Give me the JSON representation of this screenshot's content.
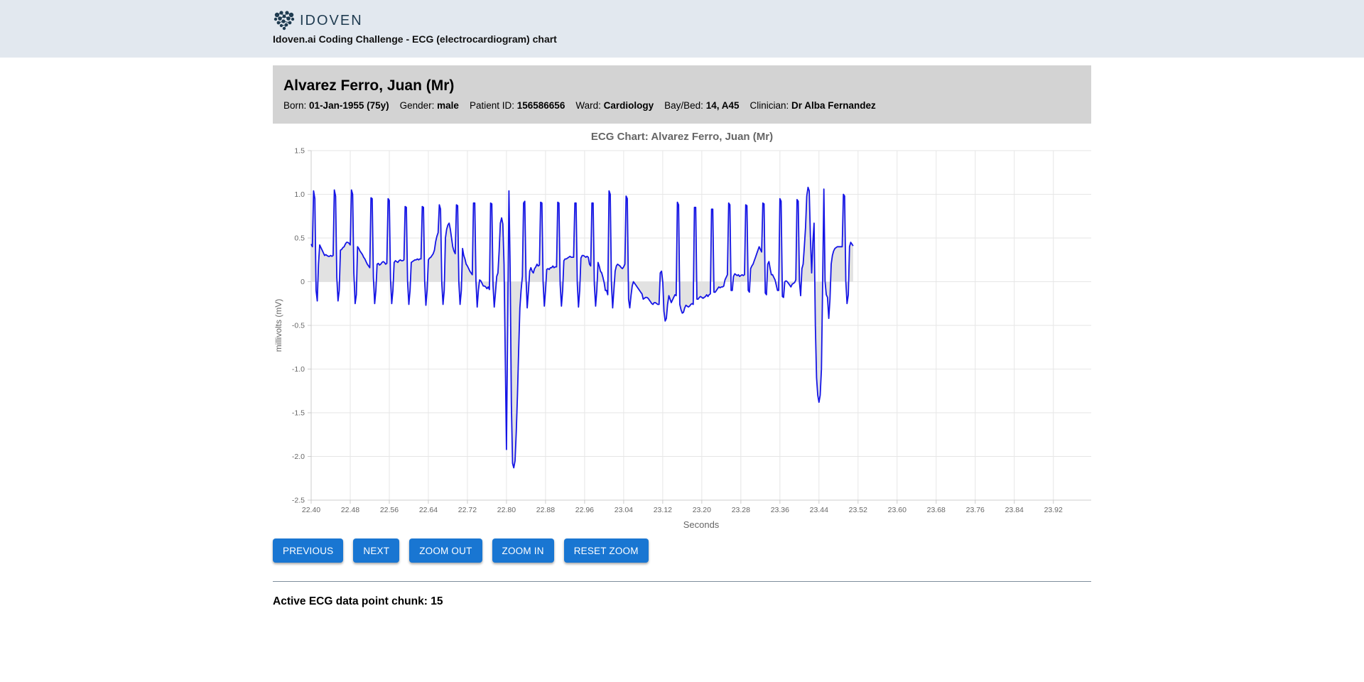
{
  "header": {
    "brand": "IDOVEN",
    "subtitle": "Idoven.ai Coding Challenge - ECG (electrocardiogram) chart",
    "logo_icon": "heart-network-icon"
  },
  "patient": {
    "name": "Alvarez Ferro, Juan (Mr)",
    "fields": [
      {
        "label": "Born:",
        "value": "01-Jan-1955 (75y)"
      },
      {
        "label": "Gender:",
        "value": "male"
      },
      {
        "label": "Patient ID:",
        "value": "156586656"
      },
      {
        "label": "Ward:",
        "value": "Cardiology"
      },
      {
        "label": "Bay/Bed:",
        "value": "14, A45"
      },
      {
        "label": "Clinician:",
        "value": "Dr Alba Fernandez"
      }
    ]
  },
  "controls": {
    "previous": "PREVIOUS",
    "next": "NEXT",
    "zoom_out": "ZOOM OUT",
    "zoom_in": "ZOOM IN",
    "reset_zoom": "RESET ZOOM"
  },
  "status": {
    "label": "Active ECG data point chunk:",
    "value": "15"
  },
  "colors": {
    "line": "#1515e6",
    "fill": "#e2e2e2",
    "button": "#1976d2",
    "header_bg": "#e2e8ef",
    "patient_bg": "#d3d3d3"
  },
  "chart_data": {
    "type": "area",
    "title": "ECG Chart: Alvarez Ferro, Juan (Mr)",
    "xlabel": "Seconds",
    "ylabel": "millivolts (mV)",
    "xlim": [
      22.4,
      23.9975
    ],
    "ylim": [
      -2.5,
      1.5
    ],
    "x_ticks": [
      "22.40",
      "22.48",
      "22.56",
      "22.64",
      "22.72",
      "22.80",
      "22.88",
      "22.96",
      "23.04",
      "23.12",
      "23.20",
      "23.28",
      "23.36",
      "23.44",
      "23.52",
      "23.60",
      "23.68",
      "23.76",
      "23.84",
      "23.92"
    ],
    "y_ticks": [
      "1.5",
      "1.0",
      "0.5",
      "0",
      "-0.5",
      "-1.0",
      "-1.5",
      "-2.0",
      "-2.5"
    ],
    "grid": true,
    "series": [
      {
        "sample_interval": 0.0025,
        "x_start": 22.4,
        "values": [
          0.43,
          0.4,
          1.04,
          0.95,
          -0.1,
          -0.22,
          0.2,
          0.42,
          0.39,
          0.36,
          0.33,
          0.3,
          0.31,
          0.3,
          0.29,
          0.29,
          0.3,
          0.29,
          0.3,
          1.05,
          0.98,
          0.05,
          -0.22,
          -0.1,
          0.36,
          0.37,
          0.39,
          0.4,
          0.43,
          0.45,
          0.45,
          0.44,
          0.42,
          1.05,
          1.0,
          0.1,
          -0.25,
          -0.15,
          0.4,
          0.38,
          0.35,
          0.33,
          0.31,
          0.28,
          0.26,
          0.23,
          0.2,
          0.18,
          0.16,
          0.96,
          0.95,
          0.05,
          -0.25,
          -0.1,
          0.2,
          0.21,
          0.19,
          0.2,
          0.22,
          0.23,
          0.22,
          0.2,
          0.21,
          0.95,
          0.93,
          0.03,
          -0.25,
          -0.1,
          0.22,
          0.24,
          0.23,
          0.22,
          0.24,
          0.25,
          0.24,
          0.24,
          0.25,
          0.86,
          0.85,
          0.0,
          -0.26,
          -0.1,
          0.22,
          0.23,
          0.24,
          0.25,
          0.25,
          0.26,
          0.25,
          0.26,
          0.26,
          0.86,
          0.85,
          0.0,
          -0.27,
          -0.1,
          0.25,
          0.27,
          0.28,
          0.3,
          0.32,
          0.36,
          0.46,
          0.52,
          0.56,
          0.88,
          0.83,
          -0.02,
          -0.26,
          -0.1,
          0.5,
          0.6,
          0.65,
          0.67,
          0.6,
          0.5,
          0.4,
          0.35,
          0.32,
          0.88,
          0.87,
          -0.01,
          -0.26,
          -0.1,
          0.38,
          0.3,
          0.26,
          0.2,
          0.18,
          0.15,
          0.12,
          0.1,
          0.08,
          0.9,
          0.9,
          0.0,
          -0.29,
          -0.1,
          0.02,
          0.01,
          -0.02,
          -0.05,
          -0.05,
          -0.06,
          -0.08,
          -0.06,
          -0.09,
          0.9,
          0.89,
          -0.04,
          -0.29,
          -0.12,
          0.06,
          0.1,
          0.35,
          0.67,
          0.73,
          0.66,
          0.2,
          -0.85,
          -1.92,
          -0.5,
          1.04,
          0.15,
          -1.4,
          -2.08,
          -2.13,
          -2.05,
          -1.72,
          -1.3,
          -0.78,
          -0.3,
          -0.1,
          0.06,
          0.9,
          0.92,
          0.05,
          -0.3,
          -0.1,
          0.12,
          0.16,
          0.12,
          0.1,
          0.15,
          0.17,
          0.2,
          0.18,
          0.19,
          0.91,
          0.9,
          -0.01,
          -0.28,
          -0.1,
          0.14,
          0.15,
          0.14,
          0.16,
          0.16,
          0.18,
          0.16,
          0.17,
          0.17,
          0.91,
          0.9,
          -0.03,
          -0.28,
          -0.1,
          0.24,
          0.26,
          0.26,
          0.27,
          0.28,
          0.29,
          0.28,
          0.28,
          0.28,
          0.9,
          0.9,
          -0.02,
          -0.29,
          -0.1,
          0.27,
          0.3,
          0.3,
          0.29,
          0.28,
          0.29,
          0.28,
          0.2,
          0.18,
          0.9,
          0.9,
          -0.03,
          -0.28,
          -0.1,
          0.22,
          0.18,
          0.12,
          0.1,
          0.05,
          -0.01,
          -0.1,
          -0.1,
          -0.15,
          1.04,
          1.0,
          -0.03,
          -0.3,
          -0.1,
          0.12,
          0.18,
          0.2,
          0.19,
          0.18,
          0.16,
          0.15,
          0.17,
          0.2,
          0.98,
          0.95,
          -0.2,
          -0.3,
          -0.16,
          -0.05,
          0.0,
          -0.02,
          -0.04,
          -0.06,
          -0.08,
          -0.1,
          -0.12,
          -0.14,
          -0.2,
          -0.19,
          -0.18,
          -0.18,
          -0.19,
          -0.21,
          -0.23,
          -0.25,
          -0.26,
          -0.24,
          -0.24,
          -0.25,
          -0.26,
          -0.26,
          0.1,
          0.12,
          0.0,
          -0.34,
          -0.45,
          -0.42,
          -0.26,
          -0.16,
          -0.2,
          -0.24,
          -0.21,
          -0.18,
          -0.15,
          -0.16,
          0.91,
          0.88,
          -0.26,
          -0.32,
          -0.36,
          -0.35,
          -0.3,
          -0.27,
          -0.28,
          -0.29,
          -0.28,
          -0.26,
          -0.25,
          -0.26,
          0.85,
          0.85,
          -0.2,
          -0.2,
          -0.18,
          -0.17,
          -0.18,
          -0.19,
          -0.18,
          -0.17,
          -0.15,
          -0.17,
          -0.15,
          -0.14,
          0.83,
          0.83,
          -0.12,
          -0.12,
          -0.1,
          -0.08,
          -0.06,
          -0.07,
          -0.06,
          -0.06,
          -0.05,
          0.02,
          0.05,
          0.08,
          0.9,
          0.88,
          -0.1,
          -0.1,
          0.06,
          0.09,
          0.08,
          0.07,
          0.08,
          0.06,
          0.07,
          0.08,
          0.07,
          0.08,
          0.88,
          0.87,
          -0.1,
          -0.12,
          0.15,
          0.18,
          0.2,
          0.24,
          0.28,
          0.32,
          0.36,
          0.4,
          0.37,
          0.34,
          0.9,
          0.89,
          -0.13,
          -0.15,
          0.2,
          0.23,
          0.15,
          0.08,
          0.08,
          0.05,
          0.02,
          -0.04,
          -0.1,
          -0.1,
          0.95,
          0.92,
          -0.17,
          -0.18,
          0.0,
          0.01,
          0.0,
          -0.02,
          -0.04,
          -0.06,
          -0.03,
          -0.02,
          -0.01,
          0.02,
          0.94,
          0.92,
          0.0,
          -0.16,
          0.15,
          0.2,
          0.4,
          0.62,
          0.98,
          1.08,
          1.04,
          0.5,
          0.1,
          0.45,
          0.67,
          -0.5,
          -1.1,
          -1.3,
          -1.38,
          -1.3,
          -1.0,
          0.0,
          1.06,
          0.0,
          -0.15,
          -0.18,
          -0.42,
          -0.2,
          0.2,
          0.3,
          0.35,
          0.38,
          0.39,
          0.4,
          0.4,
          0.4,
          0.4,
          0.4,
          1.0,
          0.98,
          0.0,
          -0.25,
          -0.15,
          0.4,
          0.45,
          0.43,
          0.41
        ]
      }
    ]
  }
}
